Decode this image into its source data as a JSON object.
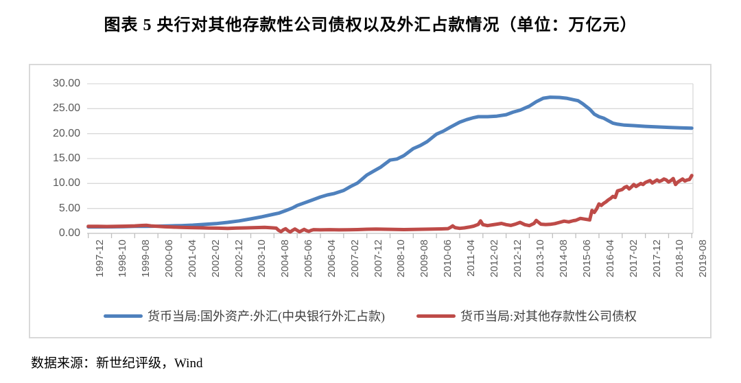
{
  "page": {
    "title": "图表 5  央行对其他存款性公司债权以及外汇占款情况（单位：万亿元）",
    "source_note": "数据来源：新世纪评级，Wind"
  },
  "colors": {
    "series_fx_blue": "#4F81BD",
    "series_claims_red": "#BE4B48",
    "grid_line": "#D9D9D9",
    "axis_line": "#BFBFBF",
    "axis_text": "#595959",
    "chart_border": "#D9D9D9"
  },
  "chart_data": {
    "type": "line",
    "title": "图表 5  央行对其他存款性公司债权以及外汇占款情况（单位：万亿元）",
    "unit_label": "万亿元",
    "grid": "horizontal",
    "legend_position": "bottom",
    "y_axis": {
      "min": 0,
      "max": 30,
      "step": 5,
      "tick_labels_top_to_bottom": [
        "30.00",
        "25.00",
        "20.00",
        "15.00",
        "10.00",
        "5.00",
        "0.00"
      ]
    },
    "x_axis": {
      "first_month": "1997-12",
      "last_month": "2019-08",
      "total_points": 261,
      "months_per_label": 10,
      "tick_labels": [
        "1997-12",
        "1998-10",
        "1999-08",
        "2000-06",
        "2001-04",
        "2002-02",
        "2002-12",
        "2003-10",
        "2004-08",
        "2005-06",
        "2006-04",
        "2007-02",
        "2007-12",
        "2008-10",
        "2009-08",
        "2010-06",
        "2011-04",
        "2012-02",
        "2012-12",
        "2013-10",
        "2014-08",
        "2015-06",
        "2016-04",
        "2017-02",
        "2017-12",
        "2018-10",
        "2019-08"
      ]
    },
    "series": [
      {
        "id": "fx",
        "name": "货币当局:国外资产:外汇(中央银行外汇占款)",
        "color": "#4F81BD",
        "values_at_labels": [
          1.3,
          1.31,
          1.4,
          1.45,
          1.56,
          1.8,
          2.2,
          2.9,
          3.85,
          5.6,
          7.3,
          8.6,
          11.7,
          14.7,
          17.0,
          19.9,
          22.3,
          23.4,
          23.8,
          25.5,
          27.3,
          26.7,
          23.4,
          21.7,
          21.45,
          21.25,
          21.1
        ],
        "peak": {
          "month": "2014-06",
          "value": 27.3
        },
        "points": [
          [
            0,
            1.3
          ],
          [
            5,
            1.3
          ],
          [
            10,
            1.31
          ],
          [
            15,
            1.35
          ],
          [
            20,
            1.4
          ],
          [
            25,
            1.42
          ],
          [
            30,
            1.45
          ],
          [
            35,
            1.5
          ],
          [
            40,
            1.56
          ],
          [
            45,
            1.65
          ],
          [
            50,
            1.8
          ],
          [
            55,
            1.95
          ],
          [
            60,
            2.2
          ],
          [
            65,
            2.5
          ],
          [
            70,
            2.9
          ],
          [
            75,
            3.35
          ],
          [
            80,
            3.85
          ],
          [
            82,
            4.05
          ],
          [
            85,
            4.55
          ],
          [
            88,
            5.1
          ],
          [
            90,
            5.6
          ],
          [
            93,
            6.1
          ],
          [
            96,
            6.6
          ],
          [
            100,
            7.3
          ],
          [
            103,
            7.7
          ],
          [
            106,
            8.0
          ],
          [
            110,
            8.6
          ],
          [
            113,
            9.4
          ],
          [
            116,
            10.1
          ],
          [
            120,
            11.7
          ],
          [
            123,
            12.5
          ],
          [
            126,
            13.3
          ],
          [
            130,
            14.7
          ],
          [
            133,
            14.9
          ],
          [
            136,
            15.6
          ],
          [
            140,
            17.0
          ],
          [
            143,
            17.6
          ],
          [
            146,
            18.4
          ],
          [
            150,
            19.9
          ],
          [
            153,
            20.5
          ],
          [
            156,
            21.3
          ],
          [
            160,
            22.3
          ],
          [
            163,
            22.8
          ],
          [
            166,
            23.2
          ],
          [
            168,
            23.4
          ],
          [
            172,
            23.4
          ],
          [
            176,
            23.5
          ],
          [
            180,
            23.8
          ],
          [
            183,
            24.3
          ],
          [
            186,
            24.7
          ],
          [
            190,
            25.5
          ],
          [
            193,
            26.4
          ],
          [
            196,
            27.1
          ],
          [
            199,
            27.3
          ],
          [
            203,
            27.25
          ],
          [
            206,
            27.1
          ],
          [
            209,
            26.8
          ],
          [
            211,
            26.6
          ],
          [
            213,
            26.0
          ],
          [
            216,
            24.9
          ],
          [
            218,
            23.9
          ],
          [
            220,
            23.4
          ],
          [
            222,
            23.1
          ],
          [
            224,
            22.6
          ],
          [
            226,
            22.1
          ],
          [
            228,
            21.9
          ],
          [
            231,
            21.7
          ],
          [
            235,
            21.6
          ],
          [
            240,
            21.45
          ],
          [
            245,
            21.35
          ],
          [
            250,
            21.25
          ],
          [
            255,
            21.15
          ],
          [
            260,
            21.1
          ]
        ]
      },
      {
        "id": "claims",
        "name": "货币当局:对其他存款性公司债权",
        "color": "#BE4B48",
        "values_at_labels": [
          1.42,
          1.4,
          1.5,
          1.4,
          1.2,
          1.1,
          1.0,
          1.13,
          1.08,
          0.6,
          0.7,
          0.72,
          0.82,
          0.79,
          0.8,
          0.88,
          1.0,
          1.75,
          1.75,
          1.55,
          1.88,
          2.62,
          5.9,
          8.8,
          10.2,
          10.3,
          11.6
        ],
        "points": [
          [
            0,
            1.42
          ],
          [
            4,
            1.4
          ],
          [
            8,
            1.38
          ],
          [
            12,
            1.42
          ],
          [
            16,
            1.45
          ],
          [
            20,
            1.5
          ],
          [
            23,
            1.58
          ],
          [
            25,
            1.62
          ],
          [
            27,
            1.5
          ],
          [
            30,
            1.4
          ],
          [
            33,
            1.32
          ],
          [
            36,
            1.26
          ],
          [
            40,
            1.2
          ],
          [
            44,
            1.16
          ],
          [
            48,
            1.12
          ],
          [
            52,
            1.08
          ],
          [
            56,
            1.04
          ],
          [
            60,
            1.0
          ],
          [
            64,
            1.06
          ],
          [
            68,
            1.1
          ],
          [
            72,
            1.15
          ],
          [
            76,
            1.2
          ],
          [
            79,
            1.12
          ],
          [
            81,
            1.05
          ],
          [
            82,
            0.6
          ],
          [
            83,
            0.35
          ],
          [
            84,
            0.7
          ],
          [
            85,
            0.92
          ],
          [
            86,
            0.55
          ],
          [
            87,
            0.28
          ],
          [
            88,
            0.6
          ],
          [
            89,
            0.88
          ],
          [
            90,
            0.6
          ],
          [
            91,
            0.32
          ],
          [
            92,
            0.55
          ],
          [
            93,
            0.8
          ],
          [
            94,
            0.55
          ],
          [
            95,
            0.4
          ],
          [
            96,
            0.6
          ],
          [
            97,
            0.75
          ],
          [
            100,
            0.7
          ],
          [
            104,
            0.74
          ],
          [
            108,
            0.7
          ],
          [
            112,
            0.73
          ],
          [
            116,
            0.76
          ],
          [
            120,
            0.82
          ],
          [
            124,
            0.86
          ],
          [
            128,
            0.82
          ],
          [
            132,
            0.78
          ],
          [
            136,
            0.76
          ],
          [
            140,
            0.8
          ],
          [
            144,
            0.82
          ],
          [
            148,
            0.86
          ],
          [
            152,
            0.9
          ],
          [
            155,
            0.95
          ],
          [
            156,
            1.2
          ],
          [
            157,
            1.5
          ],
          [
            158,
            1.15
          ],
          [
            160,
            1.0
          ],
          [
            162,
            1.1
          ],
          [
            164,
            1.25
          ],
          [
            166,
            1.45
          ],
          [
            168,
            1.8
          ],
          [
            169,
            2.5
          ],
          [
            170,
            1.75
          ],
          [
            172,
            1.55
          ],
          [
            174,
            1.7
          ],
          [
            176,
            1.85
          ],
          [
            178,
            2.0
          ],
          [
            180,
            1.75
          ],
          [
            182,
            1.6
          ],
          [
            184,
            1.85
          ],
          [
            186,
            2.2
          ],
          [
            188,
            1.75
          ],
          [
            190,
            1.55
          ],
          [
            192,
            2.0
          ],
          [
            193,
            2.6
          ],
          [
            194,
            2.2
          ],
          [
            195,
            1.85
          ],
          [
            197,
            1.78
          ],
          [
            199,
            1.82
          ],
          [
            201,
            1.95
          ],
          [
            203,
            2.2
          ],
          [
            205,
            2.45
          ],
          [
            207,
            2.3
          ],
          [
            209,
            2.55
          ],
          [
            210,
            2.62
          ],
          [
            212,
            3.0
          ],
          [
            214,
            2.85
          ],
          [
            216,
            2.7
          ],
          [
            217,
            4.6
          ],
          [
            218,
            4.2
          ],
          [
            219,
            4.9
          ],
          [
            220,
            5.9
          ],
          [
            221,
            5.6
          ],
          [
            222,
            6.0
          ],
          [
            223,
            6.3
          ],
          [
            224,
            6.7
          ],
          [
            225,
            7.0
          ],
          [
            226,
            7.4
          ],
          [
            227,
            7.2
          ],
          [
            228,
            8.5
          ],
          [
            230,
            8.8
          ],
          [
            231,
            9.2
          ],
          [
            232,
            9.4
          ],
          [
            233,
            8.9
          ],
          [
            234,
            9.3
          ],
          [
            235,
            9.8
          ],
          [
            236,
            9.4
          ],
          [
            237,
            9.7
          ],
          [
            238,
            10.0
          ],
          [
            239,
            9.8
          ],
          [
            240,
            10.2
          ],
          [
            241,
            10.4
          ],
          [
            242,
            10.6
          ],
          [
            243,
            10.1
          ],
          [
            244,
            10.4
          ],
          [
            245,
            10.7
          ],
          [
            246,
            10.4
          ],
          [
            247,
            10.6
          ],
          [
            248,
            10.9
          ],
          [
            249,
            10.7
          ],
          [
            250,
            10.3
          ],
          [
            251,
            10.6
          ],
          [
            252,
            11.0
          ],
          [
            253,
            9.8
          ],
          [
            254,
            10.3
          ],
          [
            255,
            10.6
          ],
          [
            256,
            10.9
          ],
          [
            257,
            10.5
          ],
          [
            258,
            10.7
          ],
          [
            259,
            10.8
          ],
          [
            260,
            11.6
          ]
        ]
      }
    ]
  }
}
